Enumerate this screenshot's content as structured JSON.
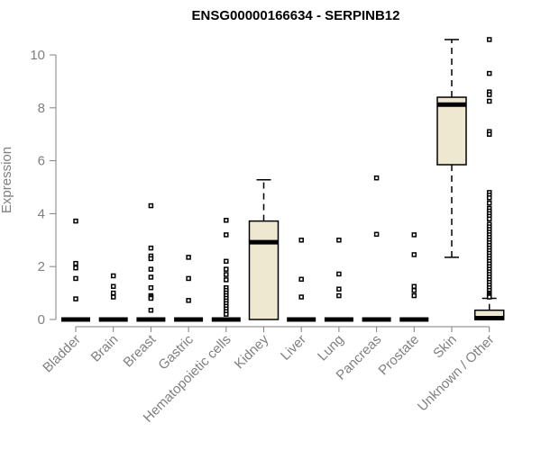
{
  "chart_data": {
    "type": "boxplot",
    "title": "ENSG00000166634 - SERPINB12",
    "ylabel": "Expression",
    "xlabel": "",
    "ylim": [
      0,
      10.5
    ],
    "yticks": [
      0,
      2,
      4,
      6,
      8,
      10
    ],
    "grid": false,
    "box_fill": "#EEE8D0",
    "categories": [
      "Bladder",
      "Brain",
      "Breast",
      "Gastric",
      "Hematopoietic cells",
      "Kidney",
      "Liver",
      "Lung",
      "Pancreas",
      "Prostate",
      "Skin",
      "Unknown / Other"
    ],
    "series": [
      {
        "q1": 0,
        "median": 0,
        "q3": 0,
        "whisker_low": 0,
        "whisker_high": 0,
        "outliers": [
          3.72,
          2.12,
          1.95,
          1.55,
          0.78
        ]
      },
      {
        "q1": 0,
        "median": 0,
        "q3": 0,
        "whisker_low": 0,
        "whisker_high": 0,
        "outliers": [
          1.65,
          1.25,
          1.0,
          0.85
        ]
      },
      {
        "q1": 0,
        "median": 0,
        "q3": 0,
        "whisker_low": 0,
        "whisker_high": 0,
        "outliers": [
          4.3,
          2.7,
          2.4,
          2.3,
          1.9,
          1.6,
          1.2,
          0.9,
          0.85,
          0.8,
          0.35
        ]
      },
      {
        "q1": 0,
        "median": 0,
        "q3": 0,
        "whisker_low": 0,
        "whisker_high": 0,
        "outliers": [
          2.35,
          1.55,
          0.72
        ]
      },
      {
        "q1": 0,
        "median": 0,
        "q3": 0,
        "whisker_low": 0,
        "whisker_high": 0,
        "outliers": [
          3.75,
          3.2,
          2.2,
          1.9,
          1.7,
          1.5,
          1.2,
          1.1,
          1.0,
          0.9,
          0.8,
          0.7,
          0.6,
          0.5,
          0.4,
          0.3,
          0.2
        ]
      },
      {
        "q1": 0,
        "median": 2.92,
        "q3": 3.72,
        "whisker_low": 0,
        "whisker_high": 5.28,
        "outliers": []
      },
      {
        "q1": 0,
        "median": 0,
        "q3": 0,
        "whisker_low": 0,
        "whisker_high": 0,
        "outliers": [
          3.0,
          1.52,
          0.85
        ]
      },
      {
        "q1": 0,
        "median": 0,
        "q3": 0,
        "whisker_low": 0,
        "whisker_high": 0,
        "outliers": [
          3.0,
          1.72,
          1.15,
          0.9
        ]
      },
      {
        "q1": 0,
        "median": 0,
        "q3": 0,
        "whisker_low": 0,
        "whisker_high": 0,
        "outliers": [
          5.35,
          3.22
        ]
      },
      {
        "q1": 0,
        "median": 0,
        "q3": 0,
        "whisker_low": 0,
        "whisker_high": 0,
        "outliers": [
          3.2,
          2.45,
          1.25,
          1.1,
          0.9
        ]
      },
      {
        "q1": 5.85,
        "median": 8.12,
        "q3": 8.4,
        "whisker_low": 2.35,
        "whisker_high": 10.58,
        "outliers": []
      },
      {
        "q1": 0,
        "median": 0.05,
        "q3": 0.35,
        "whisker_low": 0,
        "whisker_high": 0.8,
        "outliers": [
          10.58,
          9.3,
          8.6,
          8.5,
          8.25,
          7.1,
          7.0,
          4.8,
          4.7,
          4.6,
          4.4,
          4.2,
          4.1,
          4.0,
          3.9,
          3.8,
          3.6,
          3.5,
          3.4,
          3.3,
          3.2,
          3.1,
          3.0,
          2.9,
          2.8,
          2.7,
          2.6,
          2.5,
          2.4,
          2.3,
          2.2,
          2.1,
          2.0,
          1.9,
          1.8,
          1.7,
          1.6,
          1.5,
          1.4,
          1.3,
          1.2,
          1.1,
          1.0,
          0.95,
          0.9,
          0.85
        ]
      }
    ]
  }
}
